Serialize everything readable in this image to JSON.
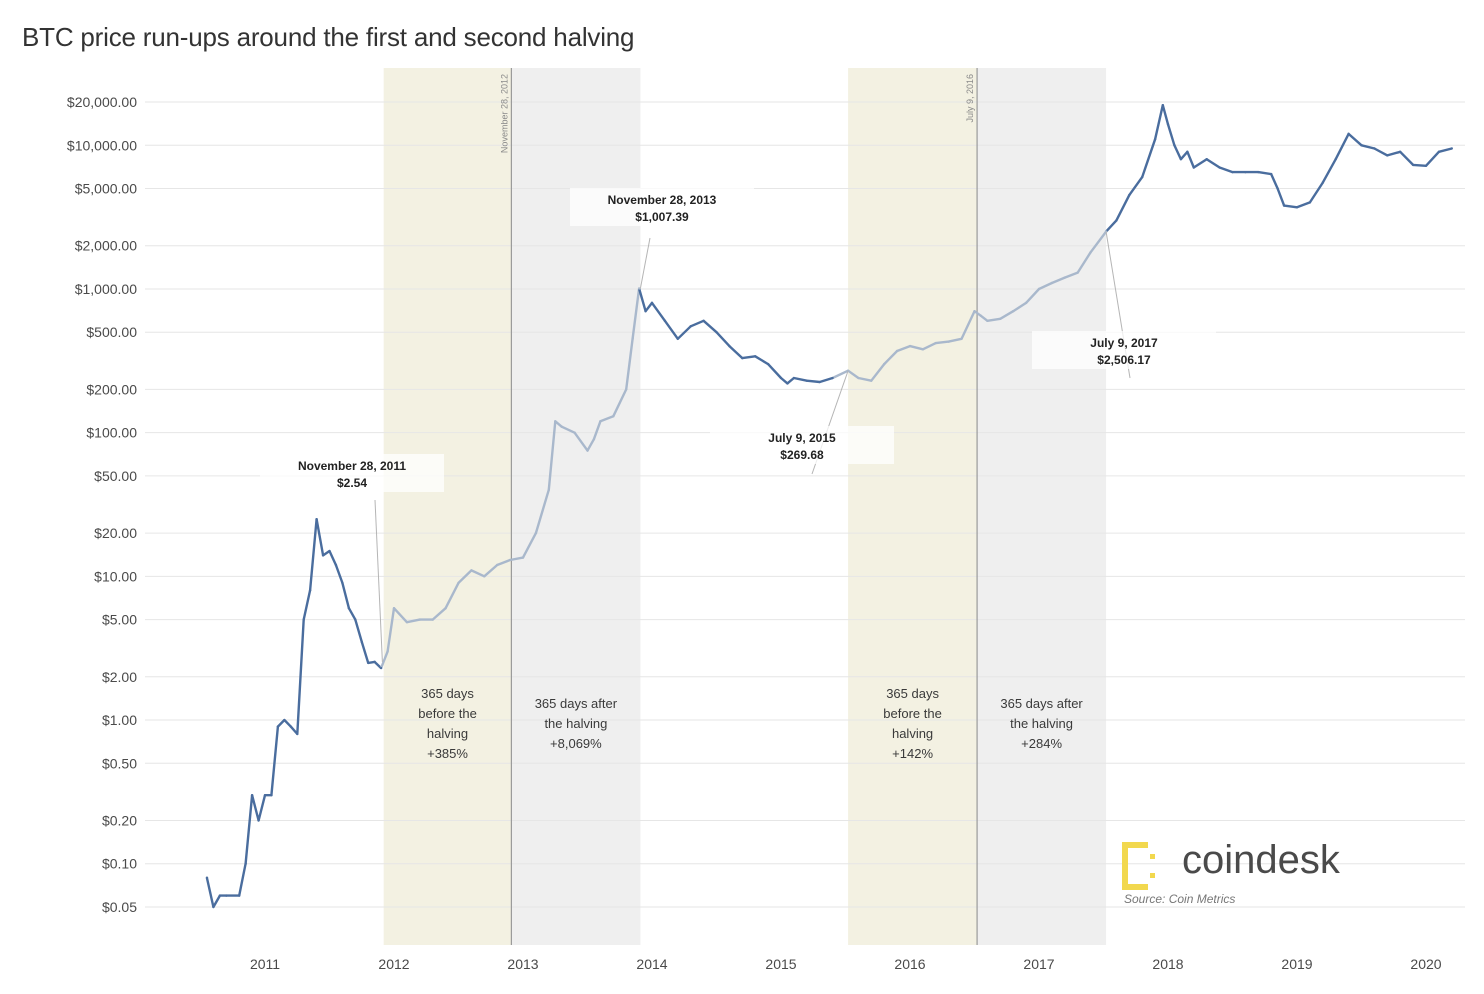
{
  "chart_data": {
    "type": "line",
    "title": "BTC price run-ups around the first and second halving",
    "xlabel": "",
    "ylabel": "",
    "yscale": "log",
    "ylim": [
      0.04,
      25000
    ],
    "xlim": [
      2010.5,
      2020.25
    ],
    "y_ticks": [
      {
        "value": 20000,
        "label": "$20,000.00"
      },
      {
        "value": 10000,
        "label": "$10,000.00"
      },
      {
        "value": 5000,
        "label": "$5,000.00"
      },
      {
        "value": 2000,
        "label": "$2,000.00"
      },
      {
        "value": 1000,
        "label": "$1,000.00"
      },
      {
        "value": 500,
        "label": "$500.00"
      },
      {
        "value": 200,
        "label": "$200.00"
      },
      {
        "value": 100,
        "label": "$100.00"
      },
      {
        "value": 50,
        "label": "$50.00"
      },
      {
        "value": 20,
        "label": "$20.00"
      },
      {
        "value": 10,
        "label": "$10.00"
      },
      {
        "value": 5,
        "label": "$5.00"
      },
      {
        "value": 2,
        "label": "$2.00"
      },
      {
        "value": 1,
        "label": "$1.00"
      },
      {
        "value": 0.5,
        "label": "$0.50"
      },
      {
        "value": 0.2,
        "label": "$0.20"
      },
      {
        "value": 0.1,
        "label": "$0.10"
      },
      {
        "value": 0.05,
        "label": "$0.05"
      }
    ],
    "x_ticks": [
      {
        "value": 2011,
        "label": "2011"
      },
      {
        "value": 2012,
        "label": "2012"
      },
      {
        "value": 2013,
        "label": "2013"
      },
      {
        "value": 2014,
        "label": "2014"
      },
      {
        "value": 2015,
        "label": "2015"
      },
      {
        "value": 2016,
        "label": "2016"
      },
      {
        "value": 2017,
        "label": "2017"
      },
      {
        "value": 2018,
        "label": "2018"
      },
      {
        "value": 2019,
        "label": "2019"
      },
      {
        "value": 2020,
        "label": "2020"
      }
    ],
    "series": [
      {
        "name": "BTC price (USD)",
        "x": [
          2010.55,
          2010.6,
          2010.65,
          2010.7,
          2010.8,
          2010.85,
          2010.9,
          2010.95,
          2011.0,
          2011.05,
          2011.1,
          2011.15,
          2011.2,
          2011.25,
          2011.3,
          2011.35,
          2011.4,
          2011.45,
          2011.5,
          2011.55,
          2011.6,
          2011.65,
          2011.7,
          2011.75,
          2011.8,
          2011.85,
          2011.9,
          2011.95,
          2012.0,
          2012.1,
          2012.2,
          2012.3,
          2012.4,
          2012.5,
          2012.6,
          2012.7,
          2012.8,
          2012.9,
          2013.0,
          2013.1,
          2013.2,
          2013.25,
          2013.3,
          2013.4,
          2013.5,
          2013.55,
          2013.6,
          2013.7,
          2013.8,
          2013.85,
          2013.9,
          2013.95,
          2014.0,
          2014.1,
          2014.2,
          2014.3,
          2014.4,
          2014.5,
          2014.6,
          2014.7,
          2014.8,
          2014.9,
          2015.0,
          2015.05,
          2015.1,
          2015.2,
          2015.3,
          2015.4,
          2015.52,
          2015.6,
          2015.7,
          2015.8,
          2015.9,
          2016.0,
          2016.1,
          2016.2,
          2016.3,
          2016.4,
          2016.5,
          2016.55,
          2016.6,
          2016.7,
          2016.8,
          2016.9,
          2017.0,
          2017.1,
          2017.2,
          2017.3,
          2017.4,
          2017.52,
          2017.6,
          2017.7,
          2017.8,
          2017.9,
          2017.96,
          2018.0,
          2018.05,
          2018.1,
          2018.15,
          2018.2,
          2018.3,
          2018.4,
          2018.5,
          2018.6,
          2018.7,
          2018.8,
          2018.85,
          2018.9,
          2019.0,
          2019.1,
          2019.2,
          2019.3,
          2019.4,
          2019.5,
          2019.6,
          2019.7,
          2019.8,
          2019.9,
          2020.0,
          2020.1,
          2020.2
        ],
        "values": [
          0.08,
          0.05,
          0.06,
          0.06,
          0.06,
          0.1,
          0.3,
          0.2,
          0.3,
          0.3,
          0.9,
          1.0,
          0.9,
          0.8,
          5.0,
          8.0,
          25.0,
          14.0,
          15.0,
          12.0,
          9.0,
          6.0,
          5.0,
          3.5,
          2.5,
          2.54,
          2.3,
          3.0,
          6.0,
          4.8,
          5.0,
          5.0,
          6.0,
          9.0,
          11.0,
          10.0,
          12.0,
          13.0,
          13.5,
          20.0,
          40.0,
          120.0,
          110.0,
          100.0,
          75.0,
          90.0,
          120.0,
          130.0,
          200.0,
          450.0,
          1007.39,
          700.0,
          800.0,
          600.0,
          450.0,
          550.0,
          600.0,
          500.0,
          400.0,
          330.0,
          340.0,
          300.0,
          240.0,
          220.0,
          240.0,
          230.0,
          225.0,
          240.0,
          269.68,
          240.0,
          230.0,
          300.0,
          370.0,
          400.0,
          380.0,
          420.0,
          430.0,
          450.0,
          700.0,
          650.0,
          600.0,
          620.0,
          700.0,
          800.0,
          1000.0,
          1100.0,
          1200.0,
          1300.0,
          1800.0,
          2506.17,
          3000.0,
          4500.0,
          6000.0,
          11000.0,
          19000.0,
          14000.0,
          10000.0,
          8000.0,
          9000.0,
          7000.0,
          8000.0,
          7000.0,
          6500.0,
          6500.0,
          6500.0,
          6300.0,
          5000.0,
          3800.0,
          3700.0,
          4000.0,
          5500.0,
          8000.0,
          12000.0,
          10000.0,
          9500.0,
          8500.0,
          9000.0,
          7300.0,
          7200.0,
          9000.0,
          9500.0
        ]
      }
    ],
    "shaded_regions": [
      {
        "x0": 2011.92,
        "x1": 2012.91,
        "color": "#f3f1e2",
        "label": [
          "365 days",
          "before the",
          "halving",
          "+385%"
        ]
      },
      {
        "x0": 2012.91,
        "x1": 2013.91,
        "color": "#efefef",
        "label": [
          "365 days after",
          "the halving",
          "+8,069%"
        ]
      },
      {
        "x0": 2015.52,
        "x1": 2016.52,
        "color": "#f3f1e2",
        "label": [
          "365 days",
          "before the",
          "halving",
          "+142%"
        ]
      },
      {
        "x0": 2016.52,
        "x1": 2017.52,
        "color": "#efefef",
        "label": [
          "365 days after",
          "the halving",
          "+284%"
        ]
      }
    ],
    "halving_lines": [
      {
        "x": 2012.91,
        "label": "November 28, 2012"
      },
      {
        "x": 2016.52,
        "label": "July 9, 2016"
      }
    ],
    "annotations": [
      {
        "x": 2011.91,
        "y": 2.54,
        "date": "November 28, 2011",
        "price": "$2.54"
      },
      {
        "x": 2013.91,
        "y": 1007.39,
        "date": "November 28, 2013",
        "price": "$1,007.39"
      },
      {
        "x": 2015.52,
        "y": 269.68,
        "date": "July 9, 2015",
        "price": "$269.68"
      },
      {
        "x": 2017.52,
        "y": 2506.17,
        "date": "July 9, 2017",
        "price": "$2,506.17"
      }
    ],
    "grid": true
  },
  "branding": {
    "logo_text": "coindesk",
    "source": "Source: Coin Metrics",
    "logo_color": "#f2d84e"
  },
  "colors": {
    "line_main": "#4a6d9e",
    "line_halving": "#a9b8cc",
    "grid": "#e6e6e6"
  }
}
